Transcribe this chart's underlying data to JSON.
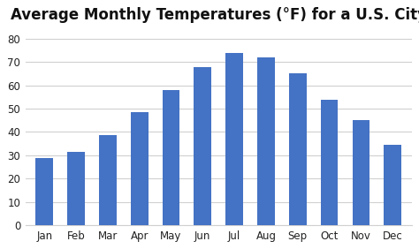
{
  "title": "Average Monthly Temperatures (°F) for a U.S. City",
  "months": [
    "Jan",
    "Feb",
    "Mar",
    "Apr",
    "May",
    "Jun",
    "Jul",
    "Aug",
    "Sep",
    "Oct",
    "Nov",
    "Dec"
  ],
  "values": [
    29,
    31.5,
    38.5,
    48.5,
    58,
    68,
    74,
    72,
    65,
    54,
    45,
    34.5
  ],
  "bar_color": "#4472C4",
  "ylim": [
    0,
    85
  ],
  "yticks": [
    0,
    10,
    20,
    30,
    40,
    50,
    60,
    70,
    80
  ],
  "background_color": "#FFFFFF",
  "grid_color": "#D0D0D0",
  "title_fontsize": 12,
  "title_fontweight": "bold",
  "bar_width": 0.55,
  "tick_fontsize": 8.5
}
